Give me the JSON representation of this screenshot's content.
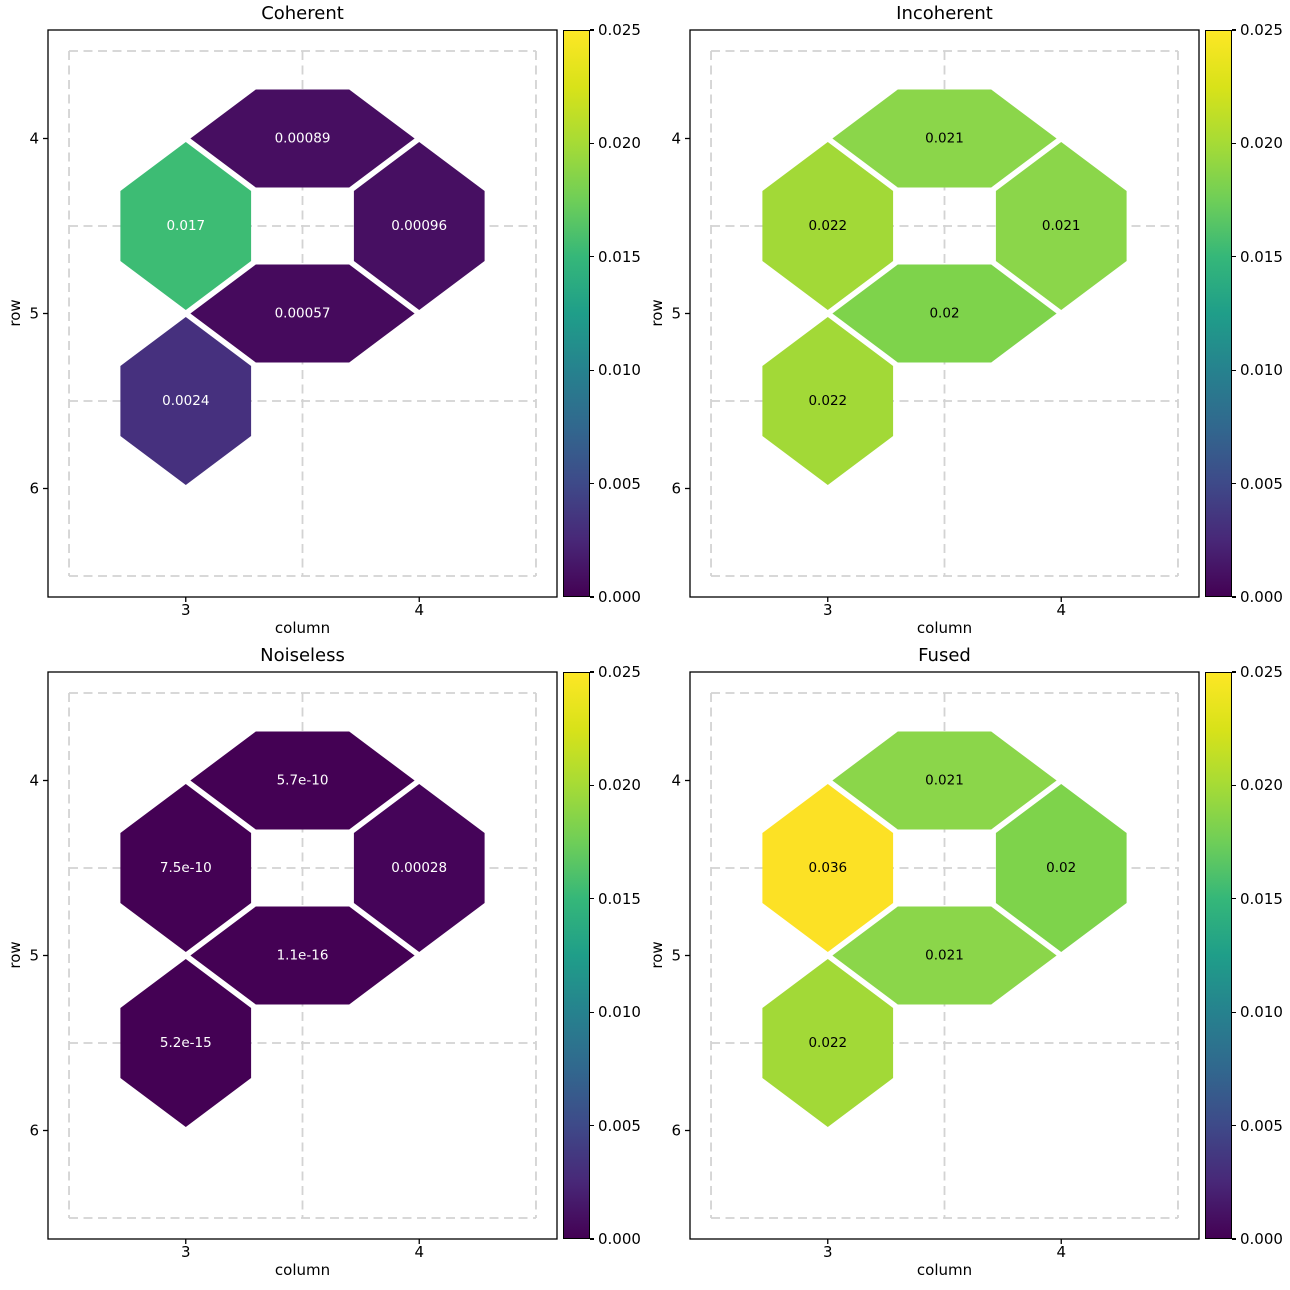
{
  "figure": {
    "background": "#ffffff",
    "text_color": "#000000",
    "axes": {
      "xlabel": "column",
      "ylabel": "row",
      "xticks": [
        3,
        4
      ],
      "xtick_labels": [
        "3",
        "4"
      ],
      "yticks": [
        4,
        5,
        6
      ],
      "ytick_labels": [
        "4",
        "5",
        "6"
      ],
      "xlim": [
        2.41,
        4.59
      ],
      "ylim": [
        3.38,
        6.62
      ],
      "grid": {
        "color": "#d3d3d3",
        "style": "dashed",
        "cols": [
          2.5,
          3.5,
          4.5
        ],
        "rows": [
          3.5,
          4.5,
          5.5,
          6.5
        ]
      }
    },
    "colorbar": {
      "vmin": 0.0,
      "vmax": 0.025,
      "ticks": [
        0.0,
        0.005,
        0.01,
        0.015,
        0.02,
        0.025
      ],
      "tick_labels": [
        "0.000",
        "0.005",
        "0.010",
        "0.015",
        "0.020",
        "0.025"
      ]
    },
    "colormap": {
      "name": "viridis",
      "stops": [
        "#440154",
        "#482878",
        "#3e4a89",
        "#31688e",
        "#26828e",
        "#1f9e89",
        "#35b779",
        "#6ece58",
        "#a5db36",
        "#d8e219",
        "#fde725"
      ]
    }
  },
  "chart_data": {
    "type": "heatmap",
    "description": "Hexagonal patch maps of values on a row/column lattice, one panel per noise model, shared viridis colorbar scale 0 to 0.025",
    "plots": [
      {
        "title": "Coherent",
        "label_color": "#ffffff",
        "patches": [
          {
            "shape": "vhex",
            "col": 3,
            "row": 4.5,
            "value": 0.017,
            "label": "0.017",
            "color": "#3dbc74",
            "label_color": "#ffffff"
          },
          {
            "shape": "hhex",
            "col": 3.5,
            "row": 4,
            "value": 0.00089,
            "label": "0.00089",
            "color": "#470e61",
            "label_color": "#ffffff"
          },
          {
            "shape": "vhex",
            "col": 4,
            "row": 4.5,
            "value": 0.00096,
            "label": "0.00096",
            "color": "#470f62",
            "label_color": "#ffffff"
          },
          {
            "shape": "hhex",
            "col": 3.5,
            "row": 5,
            "value": 0.00057,
            "label": "0.00057",
            "color": "#460a5d",
            "label_color": "#ffffff"
          },
          {
            "shape": "vhex",
            "col": 3,
            "row": 5.5,
            "value": 0.0024,
            "label": "0.0024",
            "color": "#46307e",
            "label_color": "#ffffff"
          }
        ]
      },
      {
        "title": "Incoherent",
        "label_color": "#000000",
        "patches": [
          {
            "shape": "vhex",
            "col": 3,
            "row": 4.5,
            "value": 0.022,
            "label": "0.022",
            "color": "#a2d937",
            "label_color": "#000000"
          },
          {
            "shape": "hhex",
            "col": 3.5,
            "row": 4,
            "value": 0.021,
            "label": "0.021",
            "color": "#8bd64a",
            "label_color": "#000000"
          },
          {
            "shape": "vhex",
            "col": 4,
            "row": 4.5,
            "value": 0.021,
            "label": "0.021",
            "color": "#8bd64a",
            "label_color": "#000000"
          },
          {
            "shape": "hhex",
            "col": 3.5,
            "row": 5,
            "value": 0.02,
            "label": "0.02",
            "color": "#7ed34b",
            "label_color": "#000000"
          },
          {
            "shape": "vhex",
            "col": 3,
            "row": 5.5,
            "value": 0.022,
            "label": "0.022",
            "color": "#a2d937",
            "label_color": "#000000"
          }
        ]
      },
      {
        "title": "Noiseless",
        "label_color": "#ffffff",
        "patches": [
          {
            "shape": "vhex",
            "col": 3,
            "row": 4.5,
            "value": 7.5e-10,
            "label": "7.5e-10",
            "color": "#440154",
            "label_color": "#ffffff"
          },
          {
            "shape": "hhex",
            "col": 3.5,
            "row": 4,
            "value": 5.7e-10,
            "label": "5.7e-10",
            "color": "#440154",
            "label_color": "#ffffff"
          },
          {
            "shape": "vhex",
            "col": 4,
            "row": 4.5,
            "value": 0.00028,
            "label": "0.00028",
            "color": "#450459",
            "label_color": "#ffffff"
          },
          {
            "shape": "hhex",
            "col": 3.5,
            "row": 5,
            "value": 1.1e-16,
            "label": "1.1e-16",
            "color": "#440154",
            "label_color": "#ffffff"
          },
          {
            "shape": "vhex",
            "col": 3,
            "row": 5.5,
            "value": 5.2e-15,
            "label": "5.2e-15",
            "color": "#440154",
            "label_color": "#ffffff"
          }
        ]
      },
      {
        "title": "Fused",
        "label_color": "#000000",
        "patches": [
          {
            "shape": "vhex",
            "col": 3,
            "row": 4.5,
            "value": 0.036,
            "label": "0.036",
            "color": "#fce125",
            "label_color": "#000000"
          },
          {
            "shape": "hhex",
            "col": 3.5,
            "row": 4,
            "value": 0.021,
            "label": "0.021",
            "color": "#8bd64a",
            "label_color": "#000000"
          },
          {
            "shape": "vhex",
            "col": 4,
            "row": 4.5,
            "value": 0.02,
            "label": "0.02",
            "color": "#7ed34b",
            "label_color": "#000000"
          },
          {
            "shape": "hhex",
            "col": 3.5,
            "row": 5,
            "value": 0.021,
            "label": "0.021",
            "color": "#8bd64a",
            "label_color": "#000000"
          },
          {
            "shape": "vhex",
            "col": 3,
            "row": 5.5,
            "value": 0.022,
            "label": "0.022",
            "color": "#a2d937",
            "label_color": "#000000"
          }
        ]
      }
    ]
  }
}
